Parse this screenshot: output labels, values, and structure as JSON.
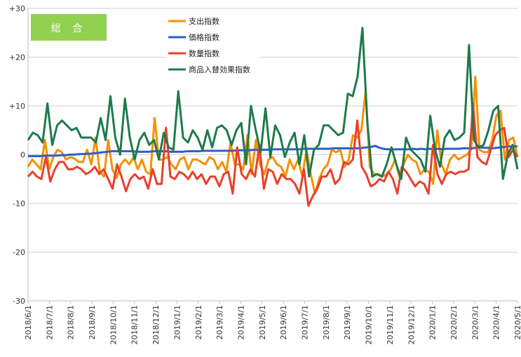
{
  "badge": {
    "label": "総 合",
    "color": "#92d050"
  },
  "chart_data": {
    "type": "line",
    "ylim": [
      -30,
      30
    ],
    "y_ticks": [
      30,
      20,
      10,
      0,
      -10,
      -20,
      -30
    ],
    "y_tick_labels": [
      "+30",
      "+20",
      "+10",
      "0",
      "-10",
      "-20",
      "-30"
    ],
    "x_tick_labels": [
      "2018/6/1",
      "2018/7/1",
      "2018/8/1",
      "2018/9/1",
      "2018/10/1",
      "2018/11/1",
      "2018/12/1",
      "2019/1/1",
      "2019/2/1",
      "2019/3/1",
      "2019/4/1",
      "2019/5/1",
      "2019/6/1",
      "2019/7/1",
      "2019/8/1",
      "2019/9/1",
      "2019/10/1",
      "2019/11/1",
      "2019/12/1",
      "2020/1/1",
      "2020/2/1",
      "2020/3/1",
      "2020/4/1",
      "2020/5/1"
    ],
    "grid": true,
    "legend_position": "top-center",
    "series": [
      {
        "name": "支出指数",
        "color": "#f39200",
        "values": [
          -2.5,
          -1,
          -2,
          -3,
          3,
          -3,
          -0.5,
          1,
          0.5,
          -1,
          -0.5,
          -0.8,
          -1.5,
          -1.5,
          1,
          -2,
          3.5,
          -3.5,
          -4.5,
          3,
          -3,
          -4.8,
          -2,
          -1,
          -2,
          -0.5,
          -3,
          -1,
          -3.5,
          -4,
          7.5,
          -1,
          -1,
          -0.5,
          -2,
          -3,
          -1,
          -0.5,
          -3,
          -1,
          -1,
          -1.5,
          -2,
          -0.5,
          -1,
          -3,
          -1.5,
          -3.5,
          2.5,
          -2,
          -2,
          -3,
          4,
          -4,
          3,
          -2,
          -4,
          -1,
          -0.5,
          -2,
          -2.5,
          -4.5,
          -1,
          -3,
          -1,
          -4.5,
          1,
          -4,
          -8,
          -5,
          -3,
          -2,
          1,
          0.5,
          1,
          -2.5,
          -1,
          4,
          3.5,
          5,
          13,
          -2.5,
          -4,
          -4,
          -4.5,
          -4,
          -3,
          -1,
          -4.5,
          -2,
          0,
          -1,
          -1.5,
          -4,
          -3,
          -3.5,
          -6,
          5,
          -2,
          -4,
          -1,
          0,
          -1,
          -0.5,
          0,
          1,
          16,
          1,
          0.5,
          0.5,
          3,
          8,
          9,
          -1,
          3,
          3.5,
          -0.5
        ]
      },
      {
        "name": "価格指数",
        "color": "#2e5fc8",
        "values": [
          -0.3,
          -0.3,
          -0.3,
          -0.3,
          -0.2,
          -0.2,
          -0.2,
          -0.2,
          -0.1,
          -0.1,
          0,
          0,
          0.1,
          0.1,
          0.2,
          0.2,
          0.3,
          0.4,
          0.5,
          0.6,
          0.7,
          0.7,
          0.7,
          0.7,
          0.7,
          0.7,
          0.6,
          0.6,
          0.6,
          0.6,
          0.7,
          0.7,
          0.7,
          0.7,
          0.6,
          0.6,
          0.6,
          0.6,
          0.7,
          0.7,
          0.7,
          0.7,
          0.8,
          0.8,
          0.8,
          0.8,
          0.8,
          0.8,
          0.8,
          0.8,
          0.9,
          0.9,
          0.9,
          0.9,
          1,
          1,
          1,
          1,
          1.1,
          1.1,
          1.1,
          1.1,
          1.1,
          1.1,
          1.1,
          1.1,
          1.2,
          1.2,
          1.2,
          1.2,
          1.2,
          1.2,
          1.2,
          1.3,
          1.3,
          1.3,
          1.3,
          1.3,
          1.3,
          1.3,
          1.4,
          1.5,
          1.6,
          1.8,
          1.4,
          1.2,
          1.1,
          1.1,
          1.1,
          1.1,
          1.1,
          1.1,
          1.2,
          1.1,
          1.2,
          1.1,
          1.2,
          1.1,
          1.2,
          1.1,
          1.2,
          1.2,
          1.2,
          1.2,
          1.3,
          1.3,
          1.3,
          1.4,
          1.5,
          1.4,
          1.4,
          1.3,
          1.4,
          1.5,
          1.6,
          1.7,
          1.7,
          1.7
        ]
      },
      {
        "name": "数量指数",
        "color": "#e8402a",
        "values": [
          -4.5,
          -3.5,
          -4.5,
          -5,
          -0.5,
          -5.5,
          -3,
          -1.5,
          -1.5,
          -3,
          -3,
          -2.5,
          -3,
          -4,
          -3.5,
          -2.5,
          -4,
          -3,
          -5,
          -7,
          -2,
          -4.5,
          -7.5,
          -5,
          -4,
          -5,
          -4.5,
          -7,
          -3,
          -6,
          -6,
          5.5,
          -4.5,
          -5,
          -3.5,
          -4,
          -5,
          -3.5,
          -5,
          -4,
          -6,
          -4.5,
          -4.5,
          -6.5,
          -4,
          -3.5,
          -8,
          1.5,
          -4,
          -5,
          -3,
          -4.5,
          2,
          -7,
          -3,
          -3.5,
          -6,
          -4,
          -5,
          -5,
          -6,
          -8,
          -3,
          -10.5,
          -8.5,
          -7,
          -4.5,
          -4.5,
          -3,
          -6,
          -5,
          -1.5,
          -2,
          -1,
          7,
          -2.5,
          -4,
          -6.5,
          -6,
          -5,
          -5.5,
          -3.5,
          -5,
          -8,
          -2.5,
          -3.5,
          -5,
          -6.5,
          -5.5,
          -6,
          -8,
          2,
          -4,
          -6,
          -4,
          -3.5,
          -4,
          -3.5,
          -3.5,
          -3,
          10.5,
          -0.5,
          -1.5,
          -2,
          1,
          4,
          5,
          5.5,
          -0.5,
          1,
          -0.5
        ]
      },
      {
        "name": "商品入替効果指数",
        "color": "#1e7a4c",
        "values": [
          3,
          4.5,
          4,
          2.5,
          10.5,
          2,
          6,
          7,
          6,
          5,
          5.5,
          3.5,
          3.5,
          3.5,
          2.5,
          7.5,
          3,
          12,
          3.5,
          0,
          11.5,
          3.5,
          -1,
          3,
          4.5,
          2,
          3,
          -1,
          4.5,
          1.5,
          1,
          13,
          3.5,
          2.5,
          5,
          3.5,
          1,
          5,
          1.5,
          5.5,
          6,
          5,
          2,
          5,
          6.5,
          -2,
          10,
          5,
          0.5,
          9.5,
          -0.5,
          6,
          4,
          -0.5,
          2.5,
          4.5,
          -2,
          4,
          -4.5,
          1,
          2,
          6,
          6,
          5,
          4,
          4.5,
          12.5,
          12,
          16,
          26,
          7,
          -4.5,
          -4,
          -4.5,
          -2,
          1.5,
          -2,
          -5,
          3.5,
          1,
          0,
          -1,
          -3.5,
          8,
          1,
          -2.5,
          3.5,
          5,
          3,
          3.5,
          4.5,
          22.5,
          3,
          1.5,
          2,
          5,
          9,
          10,
          -5,
          0,
          2,
          -3
        ]
      }
    ]
  }
}
